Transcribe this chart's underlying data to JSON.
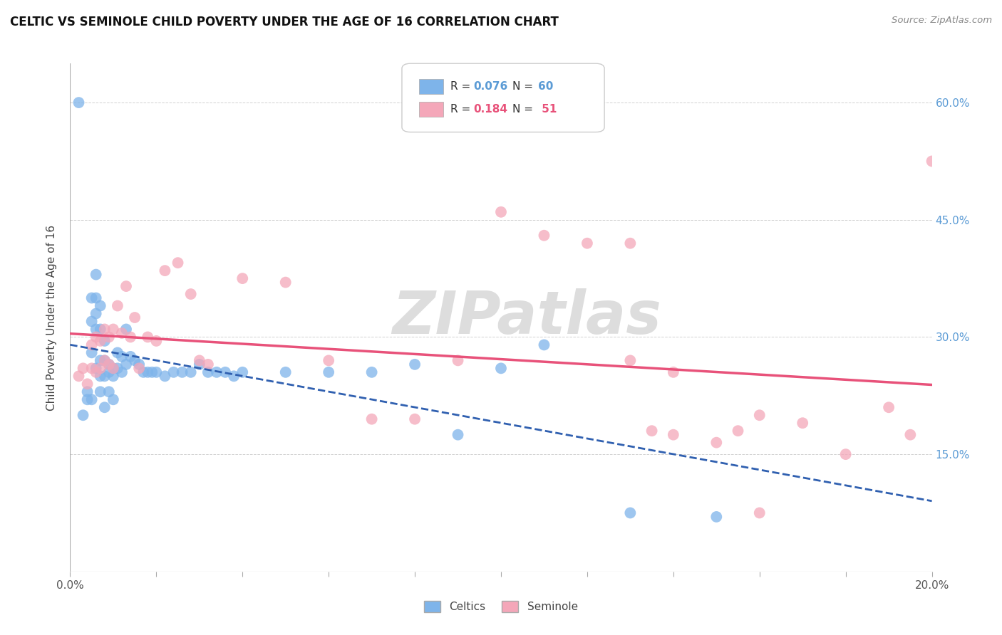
{
  "title": "CELTIC VS SEMINOLE CHILD POVERTY UNDER THE AGE OF 16 CORRELATION CHART",
  "source": "Source: ZipAtlas.com",
  "ylabel": "Child Poverty Under the Age of 16",
  "xlim": [
    0.0,
    0.2
  ],
  "ylim": [
    0.0,
    0.65
  ],
  "ytick_positions": [
    0.0,
    0.15,
    0.3,
    0.45,
    0.6
  ],
  "right_ytick_labels": [
    "",
    "15.0%",
    "30.0%",
    "45.0%",
    "60.0%"
  ],
  "xtick_positions": [
    0.0,
    0.02,
    0.04,
    0.06,
    0.08,
    0.1,
    0.12,
    0.14,
    0.16,
    0.18,
    0.2
  ],
  "xtick_labels": [
    "0.0%",
    "",
    "",
    "",
    "",
    "",
    "",
    "",
    "",
    "",
    "20.0%"
  ],
  "celtic_color": "#7EB4EA",
  "seminole_color": "#F4A7B9",
  "trend_celtic_color": "#3060B0",
  "trend_seminole_color": "#E8527A",
  "watermark_text": "ZIPatlas",
  "r_celtic": "0.076",
  "n_celtic": "60",
  "r_seminole": "0.184",
  "n_seminole": " 51",
  "r_n_color_blue": "#5B9BD5",
  "r_n_color_pink": "#E8527A",
  "celtic_x": [
    0.002,
    0.003,
    0.004,
    0.004,
    0.005,
    0.005,
    0.005,
    0.005,
    0.006,
    0.006,
    0.006,
    0.006,
    0.006,
    0.007,
    0.007,
    0.007,
    0.007,
    0.007,
    0.008,
    0.008,
    0.008,
    0.008,
    0.009,
    0.009,
    0.009,
    0.01,
    0.01,
    0.01,
    0.011,
    0.011,
    0.012,
    0.012,
    0.013,
    0.013,
    0.014,
    0.015,
    0.016,
    0.017,
    0.018,
    0.019,
    0.02,
    0.022,
    0.024,
    0.026,
    0.028,
    0.03,
    0.032,
    0.034,
    0.036,
    0.038,
    0.04,
    0.05,
    0.06,
    0.07,
    0.08,
    0.09,
    0.1,
    0.11,
    0.13,
    0.15
  ],
  "celtic_y": [
    0.6,
    0.2,
    0.23,
    0.22,
    0.35,
    0.32,
    0.28,
    0.22,
    0.38,
    0.35,
    0.33,
    0.31,
    0.26,
    0.34,
    0.31,
    0.27,
    0.25,
    0.23,
    0.295,
    0.27,
    0.25,
    0.21,
    0.265,
    0.255,
    0.23,
    0.26,
    0.25,
    0.22,
    0.28,
    0.26,
    0.275,
    0.255,
    0.31,
    0.265,
    0.275,
    0.27,
    0.265,
    0.255,
    0.255,
    0.255,
    0.255,
    0.25,
    0.255,
    0.255,
    0.255,
    0.265,
    0.255,
    0.255,
    0.255,
    0.25,
    0.255,
    0.255,
    0.255,
    0.255,
    0.265,
    0.175,
    0.26,
    0.29,
    0.075,
    0.07
  ],
  "seminole_x": [
    0.002,
    0.003,
    0.004,
    0.005,
    0.005,
    0.006,
    0.006,
    0.007,
    0.007,
    0.008,
    0.008,
    0.009,
    0.009,
    0.01,
    0.01,
    0.011,
    0.012,
    0.013,
    0.014,
    0.015,
    0.016,
    0.018,
    0.02,
    0.022,
    0.025,
    0.028,
    0.03,
    0.032,
    0.04,
    0.05,
    0.06,
    0.07,
    0.08,
    0.09,
    0.1,
    0.11,
    0.12,
    0.13,
    0.14,
    0.15,
    0.16,
    0.17,
    0.18,
    0.19,
    0.195,
    0.13,
    0.135,
    0.14,
    0.155,
    0.16,
    0.2
  ],
  "seminole_y": [
    0.25,
    0.26,
    0.24,
    0.29,
    0.26,
    0.3,
    0.255,
    0.295,
    0.26,
    0.31,
    0.27,
    0.3,
    0.265,
    0.31,
    0.26,
    0.34,
    0.305,
    0.365,
    0.3,
    0.325,
    0.26,
    0.3,
    0.295,
    0.385,
    0.395,
    0.355,
    0.27,
    0.265,
    0.375,
    0.37,
    0.27,
    0.195,
    0.195,
    0.27,
    0.46,
    0.43,
    0.42,
    0.42,
    0.255,
    0.165,
    0.2,
    0.19,
    0.15,
    0.21,
    0.175,
    0.27,
    0.18,
    0.175,
    0.18,
    0.075,
    0.525
  ]
}
